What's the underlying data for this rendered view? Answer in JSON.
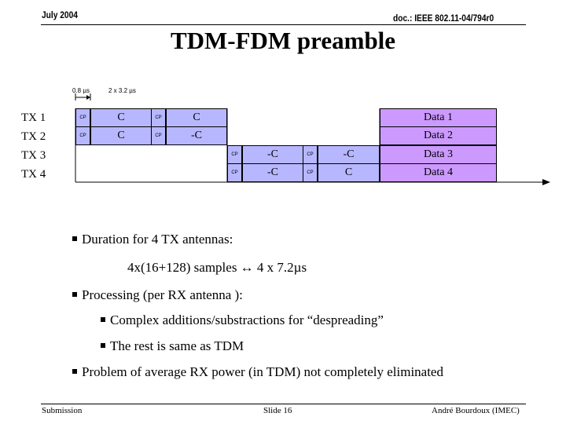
{
  "header": {
    "date": "July 2004",
    "doc_id": "doc.: IEEE 802.11-04/794r0"
  },
  "title": "TDM-FDM preamble",
  "timing": {
    "cp_duration": "0.8 µs",
    "symbol_duration": "2 x 3.2 µs"
  },
  "tx_labels": [
    "TX 1",
    "TX 2",
    "TX 3",
    "TX 4"
  ],
  "rows": [
    {
      "cp1": "CP",
      "sym1": "C",
      "cp2": "CP",
      "sym2": "C",
      "data": "Data 1"
    },
    {
      "cp1": "CP",
      "sym1": "C",
      "cp2": "CP",
      "sym2": "-C",
      "data": "Data 2"
    },
    {
      "cp1": "CP",
      "sym1": "-C",
      "cp2": "CP",
      "sym2": "-C",
      "data": "Data 3"
    },
    {
      "cp1": "CP",
      "sym1": "-C",
      "cp2": "CP",
      "sym2": "C",
      "data": "Data 4"
    }
  ],
  "bullets": {
    "b1": "Duration for 4 TX antennas:",
    "b1_detail": "4x(16+128) samples ↔ 4 x 7.2µs",
    "b2": "Processing (per RX antenna ):",
    "b2_sub1": "Complex additions/substractions for “despreading”",
    "b2_sub2": "The rest is same as TDM",
    "b3": "Problem of average RX power (in TDM) not completely eliminated"
  },
  "footer": {
    "left": "Submission",
    "center": "Slide 16",
    "right": "André Bourdoux (IMEC)"
  },
  "colors": {
    "symbol_fill": "#b7b7ff",
    "data_fill": "#cc99ff"
  }
}
